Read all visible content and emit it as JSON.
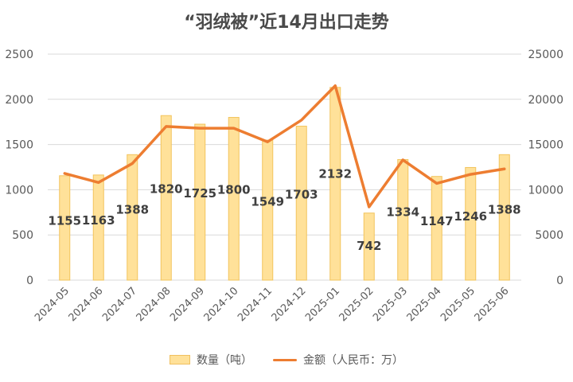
{
  "chart_data": {
    "type": "bar",
    "title": "“羽绒被”近14月出口走势",
    "categories": [
      "2024-05",
      "2024-06",
      "2024-07",
      "2024-08",
      "2024-09",
      "2024-10",
      "2024-11",
      "2024-12",
      "2025-01",
      "2025-02",
      "2025-03",
      "2025-04",
      "2025-05",
      "2025-06"
    ],
    "series": [
      {
        "name": "数量（吨）",
        "type": "bar",
        "axis": "left",
        "values": [
          1155,
          1163,
          1388,
          1820,
          1725,
          1800,
          1549,
          1703,
          2132,
          742,
          1334,
          1147,
          1246,
          1388
        ]
      },
      {
        "name": "金额（人民币：万）",
        "type": "line",
        "axis": "right",
        "values": [
          11800,
          10800,
          12900,
          17000,
          16800,
          16800,
          15300,
          17700,
          21500,
          8100,
          13300,
          10700,
          11700,
          12300
        ]
      }
    ],
    "ylim_left": [
      0,
      2500
    ],
    "ylim_right": [
      0,
      25000
    ],
    "yticks_left": [
      "0",
      "500",
      "1000",
      "1500",
      "2000",
      "2500"
    ],
    "yticks_right": [
      "0",
      "5000",
      "10000",
      "15000",
      "20000",
      "25000"
    ],
    "grid": true,
    "legend_position": "bottom",
    "colors": {
      "bar_fill": "#ffe199",
      "bar_stroke": "#f2c45d",
      "line": "#ed7d31",
      "grid": "#d9d9d9",
      "axis_text": "#595959",
      "label": "#3f3f3f"
    }
  }
}
